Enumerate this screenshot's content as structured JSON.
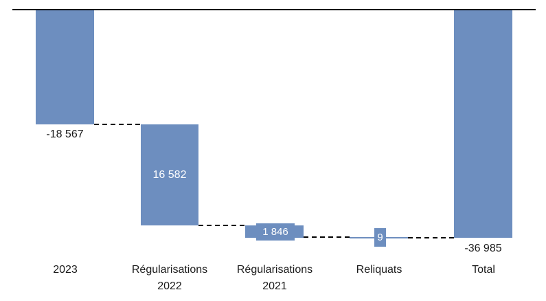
{
  "chart_data": {
    "type": "bar",
    "subtype": "waterfall",
    "title": "",
    "xlabel": "",
    "ylabel": "",
    "categories": [
      "2023",
      "Régularisations 2022",
      "Régularisations 2021",
      "Reliquats",
      "Total"
    ],
    "series": [
      {
        "name": "waterfall-deltas",
        "values": [
          -18567,
          -16582,
          -1846,
          9,
          -36985
        ],
        "roles": [
          "delta",
          "delta",
          "delta",
          "delta",
          "total"
        ]
      }
    ],
    "cumulative_levels": [
      -18567,
      -35149,
      -36995,
      -36986,
      -36985
    ],
    "data_labels": [
      "-18 567",
      "16 582",
      "1 846",
      "9",
      "-36 985"
    ],
    "data_label_placement": [
      "outside-below",
      "inside-center",
      "boxed-on-bar",
      "boxed-on-bar",
      "outside-below"
    ],
    "ylim": [
      -40000,
      0
    ],
    "zero_axis_position": "top",
    "grid": false,
    "legend": "none",
    "connectors": "dashed-black",
    "bar_color": "#6D8EBF",
    "axis_line_color": "#000000",
    "label_color_outside": "#1A1A1A",
    "label_color_inside": "#FFFFFF",
    "background_color": "#FFFFFF"
  },
  "labels": {
    "value_2023": "-18 567",
    "value_reg2022": "16 582",
    "value_reg2021": "1 846",
    "value_reliquats": "9",
    "value_total": "-36 985",
    "cat_2023": "2023",
    "cat_reg2022_line1": "Régularisations",
    "cat_reg2022_line2": "2022",
    "cat_reg2021_line1": "Régularisations",
    "cat_reg2021_line2": "2021",
    "cat_reliquats": "Reliquats",
    "cat_total": "Total"
  }
}
